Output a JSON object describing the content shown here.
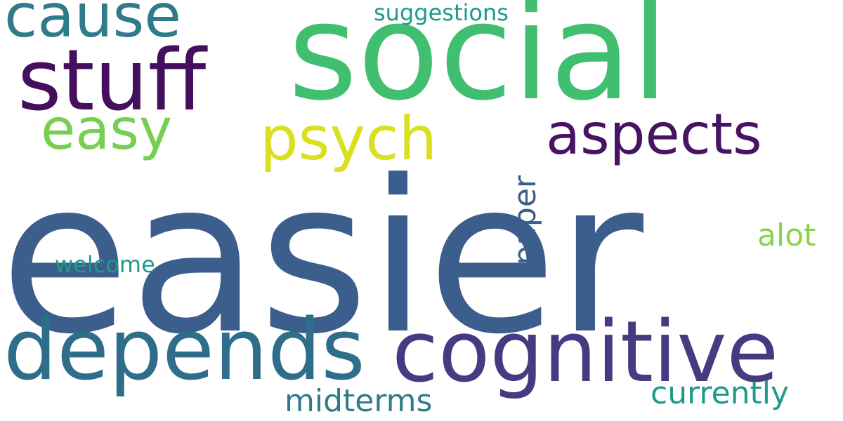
{
  "words": [
    {
      "text": "easier",
      "color": "#3b5e8c"
    },
    {
      "text": "social",
      "color": "#40bf70"
    },
    {
      "text": "stuff",
      "color": "#440f5c"
    },
    {
      "text": "depends",
      "color": "#2f6e8a"
    },
    {
      "text": "cognitive",
      "color": "#483a82"
    },
    {
      "text": "cause",
      "color": "#2f7b8a"
    },
    {
      "text": "psych",
      "color": "#dadf1f"
    },
    {
      "text": "aspects",
      "color": "#471463"
    },
    {
      "text": "easy",
      "color": "#76cf52"
    },
    {
      "text": "paper",
      "color": "#3b5e8c"
    },
    {
      "text": "alot",
      "color": "#86d548"
    },
    {
      "text": "currently",
      "color": "#1f9a8a"
    },
    {
      "text": "midterms",
      "color": "#2f7b8a"
    },
    {
      "text": "welcome",
      "color": "#1f9a8a"
    },
    {
      "text": "suggestions",
      "color": "#1f9a8a"
    }
  ]
}
